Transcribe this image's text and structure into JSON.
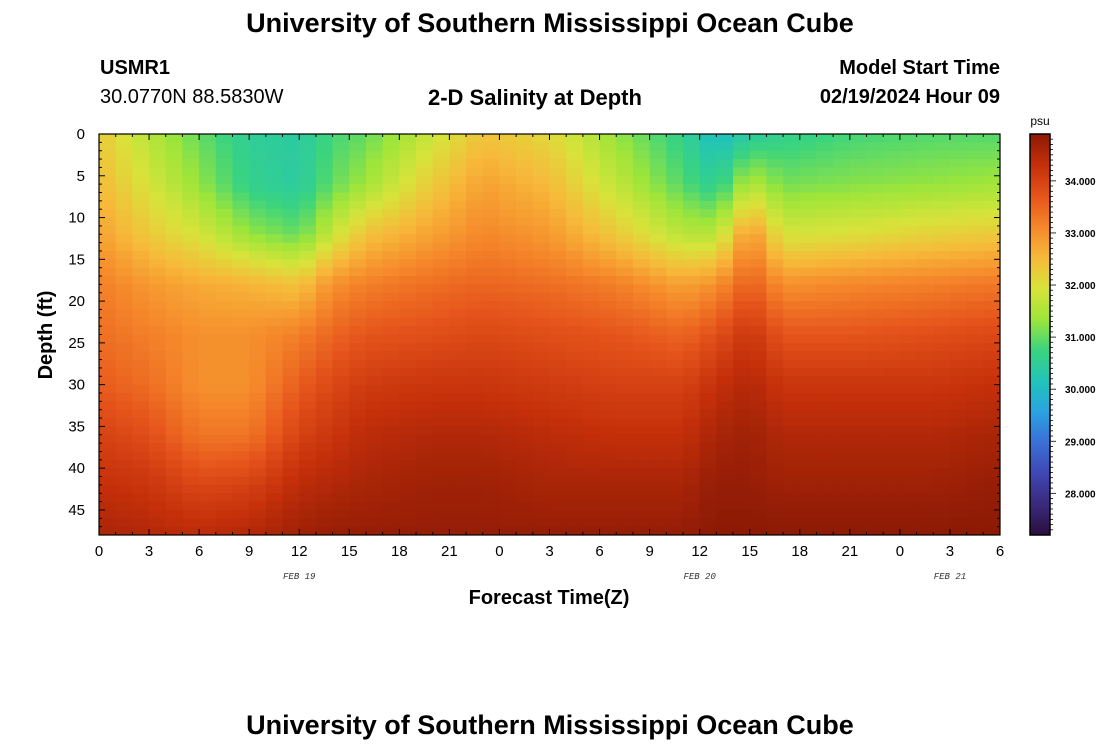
{
  "header": {
    "title": "University of Southern Mississippi Ocean Cube",
    "station": "USMR1",
    "coords": "30.0770N  88.5830W",
    "subtitle": "2-D Salinity at Depth",
    "model_start_label": "Model Start Time",
    "model_start_value": "02/19/2024 Hour 09"
  },
  "footer": {
    "title": "University of Southern Mississippi Ocean Cube"
  },
  "chart_data": {
    "type": "heatmap",
    "title": "2-D Salinity at Depth",
    "xlabel": "Forecast Time(Z)",
    "ylabel": "Depth (ft)",
    "x_tick_labels": [
      "0",
      "3",
      "6",
      "9",
      "12",
      "15",
      "18",
      "21",
      "0",
      "3",
      "6",
      "9",
      "12",
      "15",
      "18",
      "21",
      "0",
      "3",
      "6"
    ],
    "x_hours": [
      0,
      3,
      6,
      9,
      12,
      15,
      18,
      21,
      24,
      27,
      30,
      33,
      36,
      39,
      42,
      45,
      48,
      51,
      54
    ],
    "xlim": [
      0,
      54
    ],
    "date_labels": [
      {
        "text": "FEB 19",
        "hour": 12
      },
      {
        "text": "FEB 20",
        "hour": 36
      },
      {
        "text": "FEB 21",
        "hour": 51
      }
    ],
    "y_ticks": [
      0,
      5,
      10,
      15,
      20,
      25,
      30,
      35,
      40,
      45
    ],
    "ylim": [
      0,
      48
    ],
    "colorbar": {
      "unit": "psu",
      "ticks": [
        28,
        29,
        30,
        31,
        32,
        33,
        34
      ],
      "tick_labels": [
        "28.000",
        "29.000",
        "30.000",
        "31.000",
        "32.000",
        "33.000",
        "34.000"
      ],
      "range": [
        27.2,
        34.9
      ],
      "colormap": [
        "#2a0f3d",
        "#3a2a7c",
        "#3f47b5",
        "#3a6fd8",
        "#2aa3e0",
        "#21c4b8",
        "#3bd47e",
        "#9ee53a",
        "#d8e33a",
        "#f7b93a",
        "#f5862a",
        "#e5531b",
        "#c42f0a",
        "#8c1a05"
      ]
    },
    "salinity_profiles": {
      "depths_ft": [
        0,
        6,
        12,
        18,
        24,
        30,
        36,
        42,
        48
      ],
      "columns": [
        {
          "hour": 0,
          "values": [
            32.3,
            32.5,
            32.8,
            33.2,
            33.4,
            33.6,
            34.0,
            34.3,
            34.6
          ]
        },
        {
          "hour": 3,
          "values": [
            31.6,
            31.9,
            32.3,
            32.9,
            33.2,
            33.4,
            33.8,
            34.2,
            34.5
          ]
        },
        {
          "hour": 6,
          "values": [
            31.0,
            31.3,
            31.9,
            32.7,
            33.0,
            33.0,
            33.3,
            33.9,
            34.4
          ]
        },
        {
          "hour": 9,
          "values": [
            30.5,
            30.6,
            31.3,
            32.6,
            33.0,
            33.0,
            33.3,
            34.0,
            34.5
          ]
        },
        {
          "hour": 12,
          "values": [
            30.4,
            30.4,
            31.0,
            32.4,
            33.2,
            33.6,
            34.0,
            34.4,
            34.7
          ]
        },
        {
          "hour": 14,
          "values": [
            30.8,
            31.0,
            31.8,
            33.0,
            33.5,
            33.9,
            34.2,
            34.5,
            34.8
          ]
        },
        {
          "hour": 16,
          "values": [
            31.0,
            31.4,
            32.4,
            33.2,
            33.7,
            34.1,
            34.4,
            34.6,
            34.8
          ]
        },
        {
          "hour": 20,
          "values": [
            31.8,
            32.3,
            32.8,
            33.4,
            33.8,
            34.2,
            34.5,
            34.7,
            34.8
          ]
        },
        {
          "hour": 23,
          "values": [
            32.4,
            32.8,
            33.1,
            33.5,
            33.9,
            34.2,
            34.5,
            34.7,
            34.8
          ]
        },
        {
          "hour": 27,
          "values": [
            32.1,
            32.5,
            32.9,
            33.4,
            33.8,
            34.1,
            34.4,
            34.6,
            34.8
          ]
        },
        {
          "hour": 31,
          "values": [
            31.3,
            31.7,
            32.3,
            33.2,
            33.7,
            34.0,
            34.3,
            34.6,
            34.8
          ]
        },
        {
          "hour": 35,
          "values": [
            30.6,
            30.9,
            31.6,
            32.8,
            33.5,
            34.0,
            34.3,
            34.6,
            34.8
          ]
        },
        {
          "hour": 37,
          "values": [
            30.0,
            30.5,
            31.6,
            33.0,
            33.8,
            34.3,
            34.6,
            34.8,
            34.9
          ]
        },
        {
          "hour": 39,
          "values": [
            30.4,
            31.6,
            33.0,
            33.6,
            34.2,
            34.5,
            34.7,
            34.8,
            34.9
          ]
        },
        {
          "hour": 41,
          "values": [
            30.6,
            31.1,
            31.9,
            33.0,
            33.7,
            34.2,
            34.5,
            34.7,
            34.9
          ]
        },
        {
          "hour": 45,
          "values": [
            30.8,
            31.2,
            32.0,
            33.1,
            33.7,
            34.2,
            34.5,
            34.7,
            34.9
          ]
        },
        {
          "hour": 50,
          "values": [
            30.9,
            31.3,
            32.2,
            33.2,
            33.8,
            34.2,
            34.5,
            34.7,
            34.9
          ]
        },
        {
          "hour": 54,
          "values": [
            30.9,
            31.4,
            32.3,
            33.3,
            33.9,
            34.3,
            34.6,
            34.8,
            34.9
          ]
        }
      ]
    }
  }
}
